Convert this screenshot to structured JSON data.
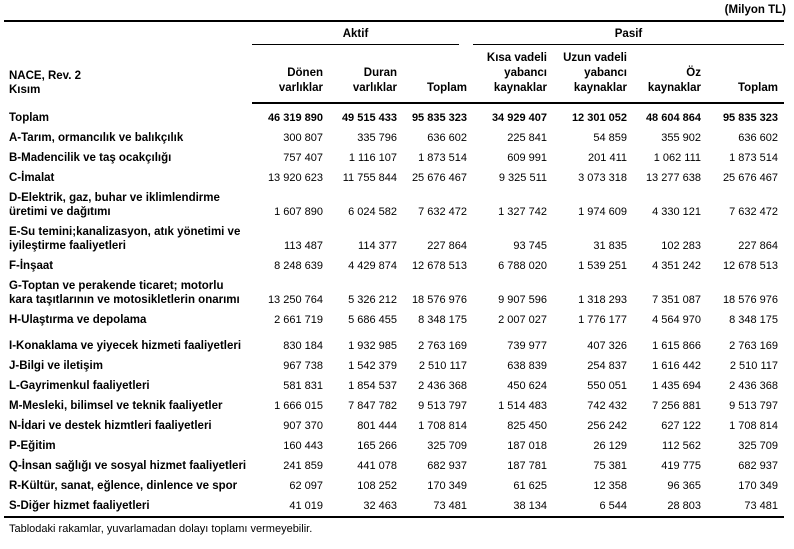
{
  "unit_label": "(Milyon TL)",
  "footnote": "Tablodaki rakamlar, yuvarlamadan dolayı toplamı vermeyebilir.",
  "table": {
    "row_header": {
      "line1": "NACE, Rev. 2",
      "line2": "Kısım"
    },
    "groups": [
      {
        "label": "Aktif",
        "span": 3
      },
      {
        "label": "Pasif",
        "span": 4
      }
    ],
    "columns": [
      "Dönen\nvarlıklar",
      "Duran\nvarlıklar",
      "Toplam",
      "Kısa vadeli\nyabancı\nkaynaklar",
      "Uzun vadeli\nyabancı\nkaynaklar",
      "Öz\nkaynaklar",
      "Toplam"
    ],
    "rows": [
      {
        "label": "Toplam",
        "bold": true,
        "values": [
          "46 319 890",
          "49 515 433",
          "95 835 323",
          "34 929 407",
          "12 301 052",
          "48 604 864",
          "95 835 323"
        ]
      },
      {
        "label": "A-Tarım, ormancılık ve balıkçılık",
        "values": [
          "300 807",
          "335 796",
          "636 602",
          "225 841",
          "54 859",
          "355 902",
          "636 602"
        ]
      },
      {
        "label": "B-Madencilik ve taş ocakçılığı",
        "values": [
          "757 407",
          "1 116 107",
          "1 873 514",
          "609 991",
          "201 411",
          "1 062 111",
          "1 873 514"
        ]
      },
      {
        "label": "C-İmalat",
        "values": [
          "13 920 623",
          "11 755 844",
          "25 676 467",
          "9 325 511",
          "3 073 318",
          "13 277 638",
          "25 676 467"
        ]
      },
      {
        "label": "D-Elektrik, gaz, buhar ve iklimlendirme üretimi ve dağıtımı",
        "values": [
          "1 607 890",
          "6 024 582",
          "7 632 472",
          "1 327 742",
          "1 974 609",
          "4 330 121",
          "7 632 472"
        ]
      },
      {
        "label": "E-Su temini;kanalizasyon, atık yönetimi ve iyileştirme faaliyetleri",
        "values": [
          "113 487",
          "114 377",
          "227 864",
          "93 745",
          "31 835",
          "102 283",
          "227 864"
        ]
      },
      {
        "label": "F-İnşaat",
        "values": [
          "8 248 639",
          "4 429 874",
          "12 678 513",
          "6 788 020",
          "1 539 251",
          "4 351 242",
          "12 678 513"
        ]
      },
      {
        "label": "G-Toptan ve perakende ticaret; motorlu kara taşıtlarının ve motosikletlerin onarımı",
        "values": [
          "13 250 764",
          "5 326 212",
          "18 576 976",
          "9 907 596",
          "1 318 293",
          "7 351 087",
          "18 576 976"
        ]
      },
      {
        "label": "H-Ulaştırma ve depolama",
        "values": [
          "2 661 719",
          "5 686 455",
          "8 348 175",
          "2 007 027",
          "1 776 177",
          "4 564 970",
          "8 348 175"
        ]
      },
      {
        "label": "I-Konaklama ve yiyecek hizmeti faaliyetleri",
        "tall": true,
        "values": [
          "830 184",
          "1 932 985",
          "2 763 169",
          "739 977",
          "407 326",
          "1 615 866",
          "2 763 169"
        ]
      },
      {
        "label": "J-Bilgi ve iletişim",
        "values": [
          "967 738",
          "1 542 379",
          "2 510 117",
          "638 839",
          "254 837",
          "1 616 442",
          "2 510 117"
        ]
      },
      {
        "label": "L-Gayrimenkul faaliyetleri",
        "values": [
          "581 831",
          "1 854 537",
          "2 436 368",
          "450 624",
          "550 051",
          "1 435 694",
          "2 436 368"
        ]
      },
      {
        "label": "M-Mesleki, bilimsel ve teknik faaliyetler",
        "values": [
          "1 666 015",
          "7 847 782",
          "9 513 797",
          "1 514 483",
          "742 432",
          "7 256 881",
          "9 513 797"
        ]
      },
      {
        "label": "N-İdari ve destek hizmtleri faaliyetleri",
        "values": [
          "907 370",
          "801 444",
          "1 708 814",
          "825 450",
          "256 242",
          "627 122",
          "1 708 814"
        ]
      },
      {
        "label": "P-Eğitim",
        "values": [
          "160 443",
          "165 266",
          "325 709",
          "187 018",
          "26 129",
          "112 562",
          "325 709"
        ]
      },
      {
        "label": "Q-İnsan sağlığı ve sosyal hizmet faaliyetleri",
        "values": [
          "241 859",
          "441 078",
          "682 937",
          "187 781",
          "75 381",
          "419 775",
          "682 937"
        ]
      },
      {
        "label": "R-Kültür, sanat, eğlence, dinlence ve spor",
        "values": [
          "62 097",
          "108 252",
          "170 349",
          "61 625",
          "12 358",
          "96 365",
          "170 349"
        ]
      },
      {
        "label": "S-Diğer hizmet faaliyetleri",
        "values": [
          "41 019",
          "32 463",
          "73 481",
          "38 134",
          "6 544",
          "28 803",
          "73 481"
        ]
      }
    ]
  }
}
